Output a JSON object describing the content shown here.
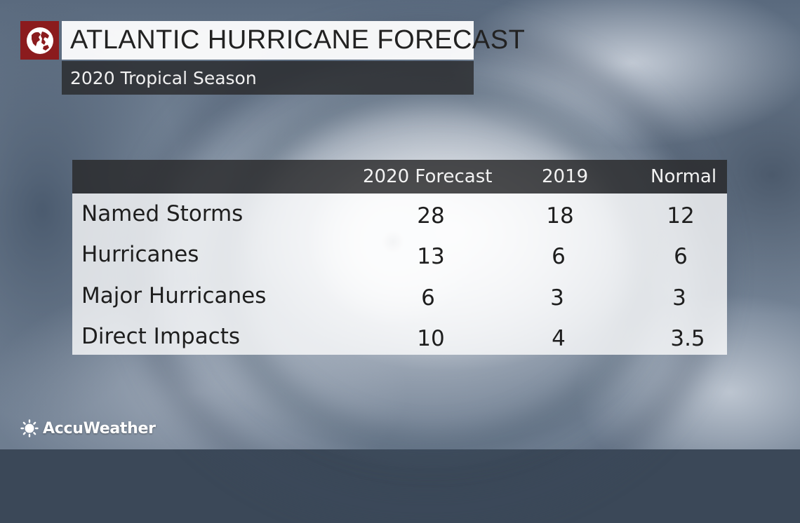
{
  "header": {
    "title": "ATLANTIC HURRICANE FORECAST",
    "subtitle": "2020 Tropical Season",
    "logo_icon": "globe-icon",
    "logo_color": "#8b1b1d"
  },
  "table": {
    "columns": [
      "",
      "2020 Forecast",
      "2019",
      "Normal"
    ],
    "rows": [
      {
        "label": "Named Storms",
        "values": [
          "28",
          "18",
          "12"
        ]
      },
      {
        "label": "Hurricanes",
        "values": [
          "13",
          "6",
          "6"
        ]
      },
      {
        "label": "Major Hurricanes",
        "values": [
          "6",
          "3",
          "3"
        ]
      },
      {
        "label": "Direct Impacts",
        "values": [
          "10",
          "4",
          "3.5"
        ]
      }
    ]
  },
  "brand": {
    "name": "AccuWeather",
    "icon": "sun-icon"
  }
}
